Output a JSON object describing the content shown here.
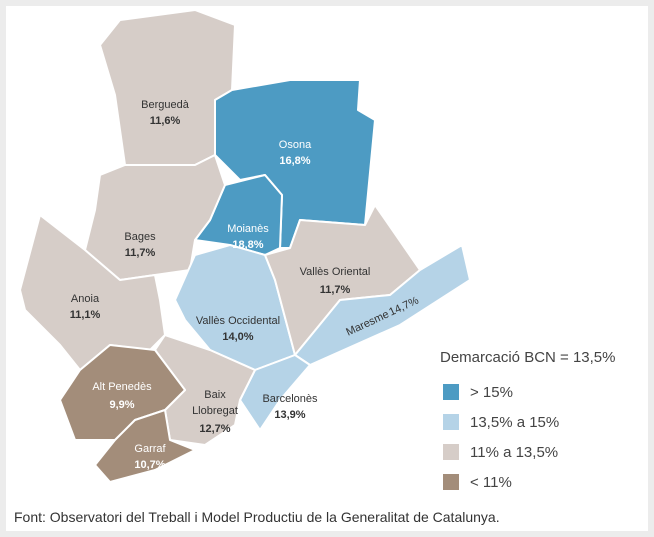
{
  "map": {
    "regions": [
      {
        "name": "Berguedà",
        "label": "11,6%",
        "color": "#d6cdc8"
      },
      {
        "name": "Osona",
        "label": "16,8%",
        "color": "#4d9bc3"
      },
      {
        "name": "Moianès",
        "label": "18,8%",
        "color": "#4d9bc3"
      },
      {
        "name": "Bages",
        "label": "11,7%",
        "color": "#d6cdc8"
      },
      {
        "name": "Anoia",
        "label": "11,1%",
        "color": "#d6cdc8"
      },
      {
        "name": "Vallès Occidental",
        "label": "14,0%",
        "color": "#b5d3e7"
      },
      {
        "name": "Vallès Oriental",
        "label": "11,7%",
        "color": "#d6cdc8"
      },
      {
        "name": "Maresme",
        "label": "14,7%",
        "color": "#b5d3e7"
      },
      {
        "name": "Barcelonès",
        "label": "13,9%",
        "color": "#b5d3e7"
      },
      {
        "name": "Baix",
        "name2": "Llobregat",
        "label": "12,7%",
        "color": "#d6cdc8"
      },
      {
        "name": "Alt Penedès",
        "label": "9,9%",
        "color": "#a38d7a"
      },
      {
        "name": "Garraf",
        "label": "10,7%",
        "color": "#a38d7a"
      }
    ],
    "legend": {
      "title": "Demarcació BCN = 13,5%",
      "items": [
        {
          "label": "> 15%",
          "color": "#4d9bc3"
        },
        {
          "label": "13,5% a 15%",
          "color": "#b5d3e7"
        },
        {
          "label": "11% a 13,5%",
          "color": "#d6cdc8"
        },
        {
          "label": "< 11%",
          "color": "#a38d7a"
        }
      ]
    },
    "source": "Font: Observatori del Treball i Model Productiu de la Generalitat de Catalunya."
  }
}
